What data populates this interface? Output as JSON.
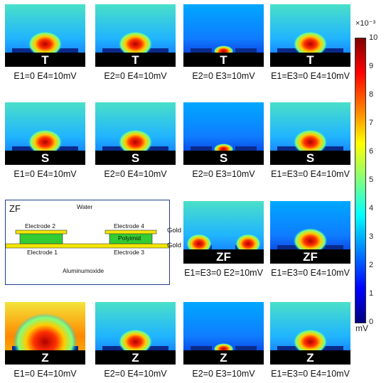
{
  "panels": [
    {
      "row": 1,
      "col": 1,
      "label": "T",
      "caption": "E1=0 E4=10mV",
      "intensity": "medium",
      "hot": "center"
    },
    {
      "row": 1,
      "col": 2,
      "label": "T",
      "caption": "E2=0 E4=10mV",
      "intensity": "medium",
      "hot": "center"
    },
    {
      "row": 1,
      "col": 3,
      "label": "T",
      "caption": "E2=0 E3=10mV",
      "intensity": "low",
      "hot": "bottom"
    },
    {
      "row": 1,
      "col": 4,
      "label": "T",
      "caption": "E1=E3=0 E4=10mV",
      "intensity": "medium",
      "hot": "center"
    },
    {
      "row": 2,
      "col": 1,
      "label": "S",
      "caption": "E1=0 E4=10mV",
      "intensity": "medium",
      "hot": "center"
    },
    {
      "row": 2,
      "col": 2,
      "label": "S",
      "caption": "E2=0 E4=10mV",
      "intensity": "medium",
      "hot": "center"
    },
    {
      "row": 2,
      "col": 3,
      "label": "S",
      "caption": "E2=0 E3=10mV",
      "intensity": "low",
      "hot": "bottom"
    },
    {
      "row": 2,
      "col": 4,
      "label": "S",
      "caption": "E1=E3=0 E4=10mV",
      "intensity": "medium",
      "hot": "center"
    },
    {
      "row": 3,
      "col": 3,
      "label": "ZF",
      "caption": "E1=E3=0 E2=10mV",
      "intensity": "medium",
      "hot": "left-right"
    },
    {
      "row": 3,
      "col": 4,
      "label": "ZF",
      "caption": "E1=E3=0 E4=10mV",
      "intensity": "low",
      "hot": "center"
    },
    {
      "row": 4,
      "col": 1,
      "label": "Z",
      "caption": "E1=0 E4=10mV",
      "intensity": "high",
      "hot": "center"
    },
    {
      "row": 4,
      "col": 2,
      "label": "Z",
      "caption": "E2=0 E4=10mV",
      "intensity": "medium",
      "hot": "center"
    },
    {
      "row": 4,
      "col": 3,
      "label": "Z",
      "caption": "E2=0 E3=10mV",
      "intensity": "low",
      "hot": "bottom"
    },
    {
      "row": 4,
      "col": 4,
      "label": "Z",
      "caption": "E1=E3=0 E4=10mV",
      "intensity": "medium",
      "hot": "center"
    }
  ],
  "schematic": {
    "title": "ZF",
    "water": "Water",
    "electrode2": "Electrode 2",
    "electrode4": "Electrode 4",
    "polyimid": "Polyimid",
    "gold_top": "Gold",
    "gold_bottom": "Gold",
    "electrode1": "Electrode 1",
    "electrode3": "Electrode 3",
    "substrate": "Aluminumoxide"
  },
  "colorbar": {
    "exponent": "×10⁻³",
    "ticks": [
      "10",
      "9",
      "8",
      "7",
      "6",
      "5",
      "4",
      "3",
      "2",
      "1",
      "0"
    ],
    "unit": "mV",
    "min": 0,
    "max": 10
  },
  "colors": {
    "jet": [
      "#00007f",
      "#0000ff",
      "#007fff",
      "#00ffff",
      "#7fff7f",
      "#ffff00",
      "#ff7f00",
      "#ff0000",
      "#7f0000"
    ],
    "substrate_black": "#000000",
    "gold": "#f2e600",
    "polyimid": "#33cc33",
    "schematic_border": "#1f3f8a"
  }
}
